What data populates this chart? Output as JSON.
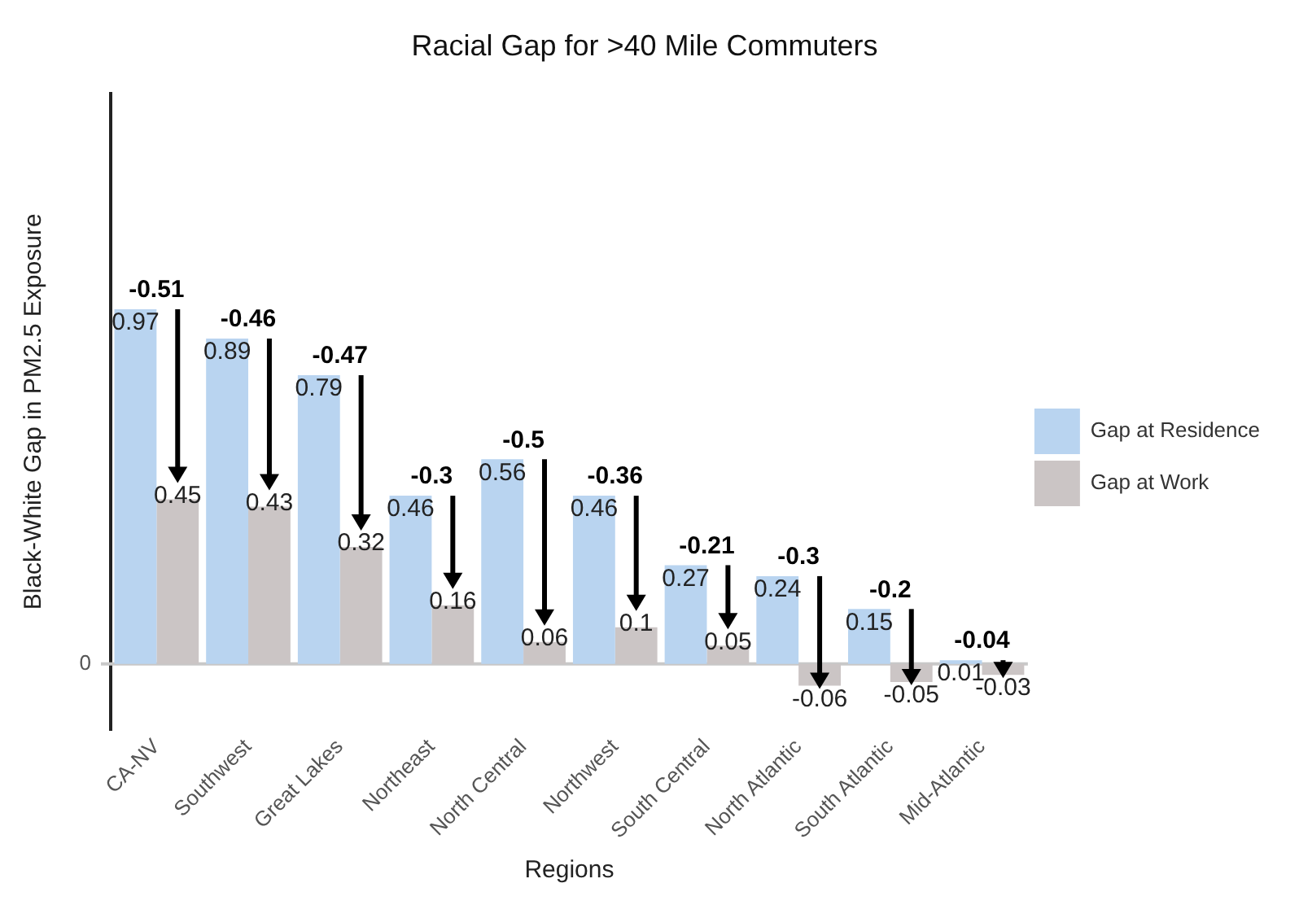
{
  "chart_data": {
    "type": "bar",
    "title": "Racial Gap for >40 Mile Commuters",
    "xlabel": "Regions",
    "ylabel": "Black-White Gap in PM2.5 Exposure",
    "categories": [
      "CA-NV",
      "Southwest",
      "Great Lakes",
      "Northeast",
      "North Central",
      "Northwest",
      "South Central",
      "North Atlantic",
      "South Atlantic",
      "Mid-Atlantic"
    ],
    "series": [
      {
        "name": "Gap at Residence",
        "color": "#b9d4f0",
        "values": [
          0.97,
          0.89,
          0.79,
          0.46,
          0.56,
          0.46,
          0.27,
          0.24,
          0.15,
          0.01
        ]
      },
      {
        "name": "Gap at Work",
        "color": "#cbc5c5",
        "values": [
          0.45,
          0.43,
          0.32,
          0.16,
          0.06,
          0.1,
          0.05,
          -0.06,
          -0.05,
          -0.03
        ]
      }
    ],
    "annotations": [
      {
        "text": "-0.51",
        "x": "CA-NV",
        "y": 0.97
      },
      {
        "text": "-0.46",
        "x": "Southwest",
        "y": 0.89
      },
      {
        "text": "-0.47",
        "x": "Great Lakes",
        "y": 0.79
      },
      {
        "text": "-0.3",
        "x": "Northeast",
        "y": 0.46
      },
      {
        "text": "-0.5",
        "x": "North Central",
        "y": 0.56
      },
      {
        "text": "-0.36",
        "x": "Northwest",
        "y": 0.46
      },
      {
        "text": "-0.21",
        "x": "South Central",
        "y": 0.27
      },
      {
        "text": "-0.3",
        "x": "North Atlantic",
        "y": 0.24
      },
      {
        "text": "-0.2",
        "x": "South Atlantic",
        "y": 0.15
      },
      {
        "text": "-0.04",
        "x": "Mid-Atlantic",
        "y": 0.01
      }
    ],
    "ref_lines": [
      {
        "axis": "y",
        "value": 0,
        "label": "0",
        "color": "#c8c8c8"
      }
    ],
    "ylim": [
      -0.18,
      1.56
    ],
    "tick_labels": "x",
    "legend": "right",
    "data_labels": true
  }
}
